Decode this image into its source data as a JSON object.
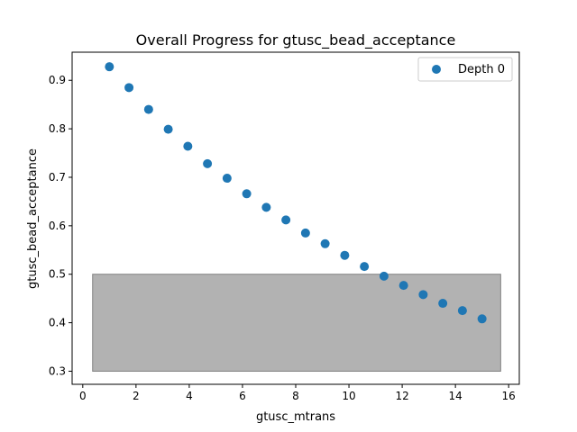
{
  "chart_data": {
    "type": "scatter",
    "title": "Overall Progress for gtusc_bead_acceptance",
    "xlabel": "gtusc_mtrans",
    "ylabel": "gtusc_bead_acceptance",
    "xlim": [
      -0.4,
      16.4
    ],
    "ylim": [
      0.273,
      0.958
    ],
    "xticks": [
      0,
      2,
      4,
      6,
      8,
      10,
      12,
      14,
      16
    ],
    "yticks": [
      0.3,
      0.4,
      0.5,
      0.6,
      0.7,
      0.8,
      0.9
    ],
    "grid": false,
    "legend_position": "top-right",
    "series": [
      {
        "name": "Depth 0",
        "color": "#1f77b4",
        "x": [
          1.0,
          1.737,
          2.474,
          3.211,
          3.947,
          4.684,
          5.421,
          6.158,
          6.895,
          7.632,
          8.368,
          9.105,
          9.842,
          10.579,
          11.316,
          12.053,
          12.789,
          13.526,
          14.263,
          15.0
        ],
        "y": [
          0.928,
          0.885,
          0.84,
          0.799,
          0.764,
          0.728,
          0.698,
          0.666,
          0.638,
          0.612,
          0.585,
          0.563,
          0.539,
          0.516,
          0.496,
          0.477,
          0.458,
          0.44,
          0.425,
          0.408
        ]
      }
    ],
    "shaded_region": {
      "x_range": [
        0.37,
        15.7
      ],
      "y_range": [
        0.3,
        0.5
      ],
      "fill": "#b2b2b2",
      "edge": "#808080"
    }
  }
}
